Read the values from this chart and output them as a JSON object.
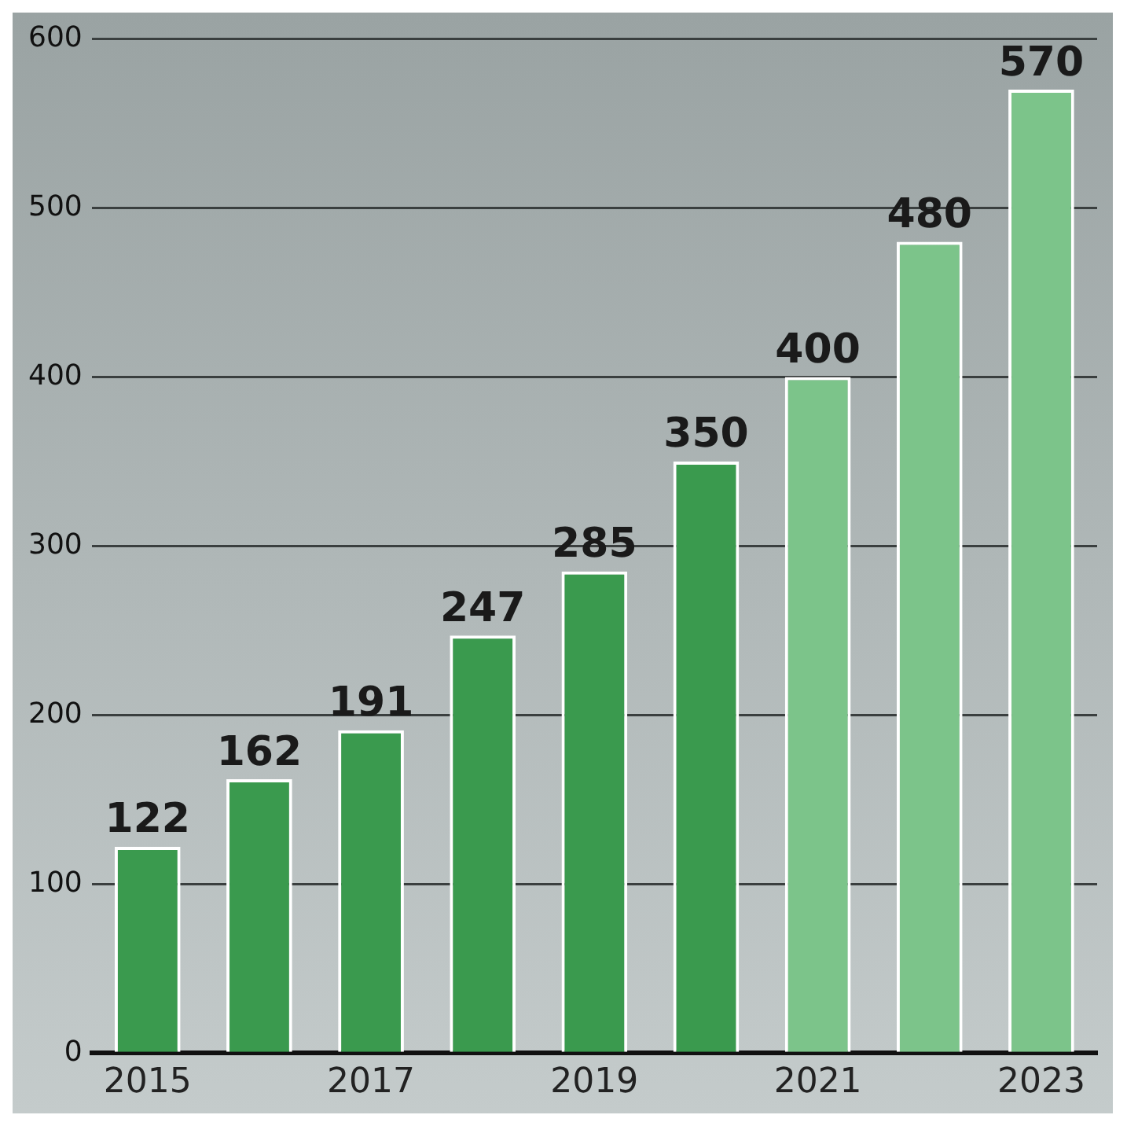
{
  "chart_data": {
    "type": "bar",
    "categories": [
      "2015",
      null,
      "2017",
      null,
      "2019",
      null,
      "2021",
      null,
      "2023"
    ],
    "values": [
      122,
      162,
      191,
      247,
      285,
      350,
      400,
      480,
      570
    ],
    "colors": [
      "#3a9a4e",
      "#3a9a4e",
      "#3a9a4e",
      "#3a9a4e",
      "#3a9a4e",
      "#3a9a4e",
      "#7cc48a",
      "#7cc48a",
      "#7cc48a"
    ],
    "ylim": [
      0,
      600
    ],
    "yticks": [
      0,
      100,
      200,
      300,
      400,
      500,
      600
    ],
    "grid": "y",
    "data_labels": true
  }
}
